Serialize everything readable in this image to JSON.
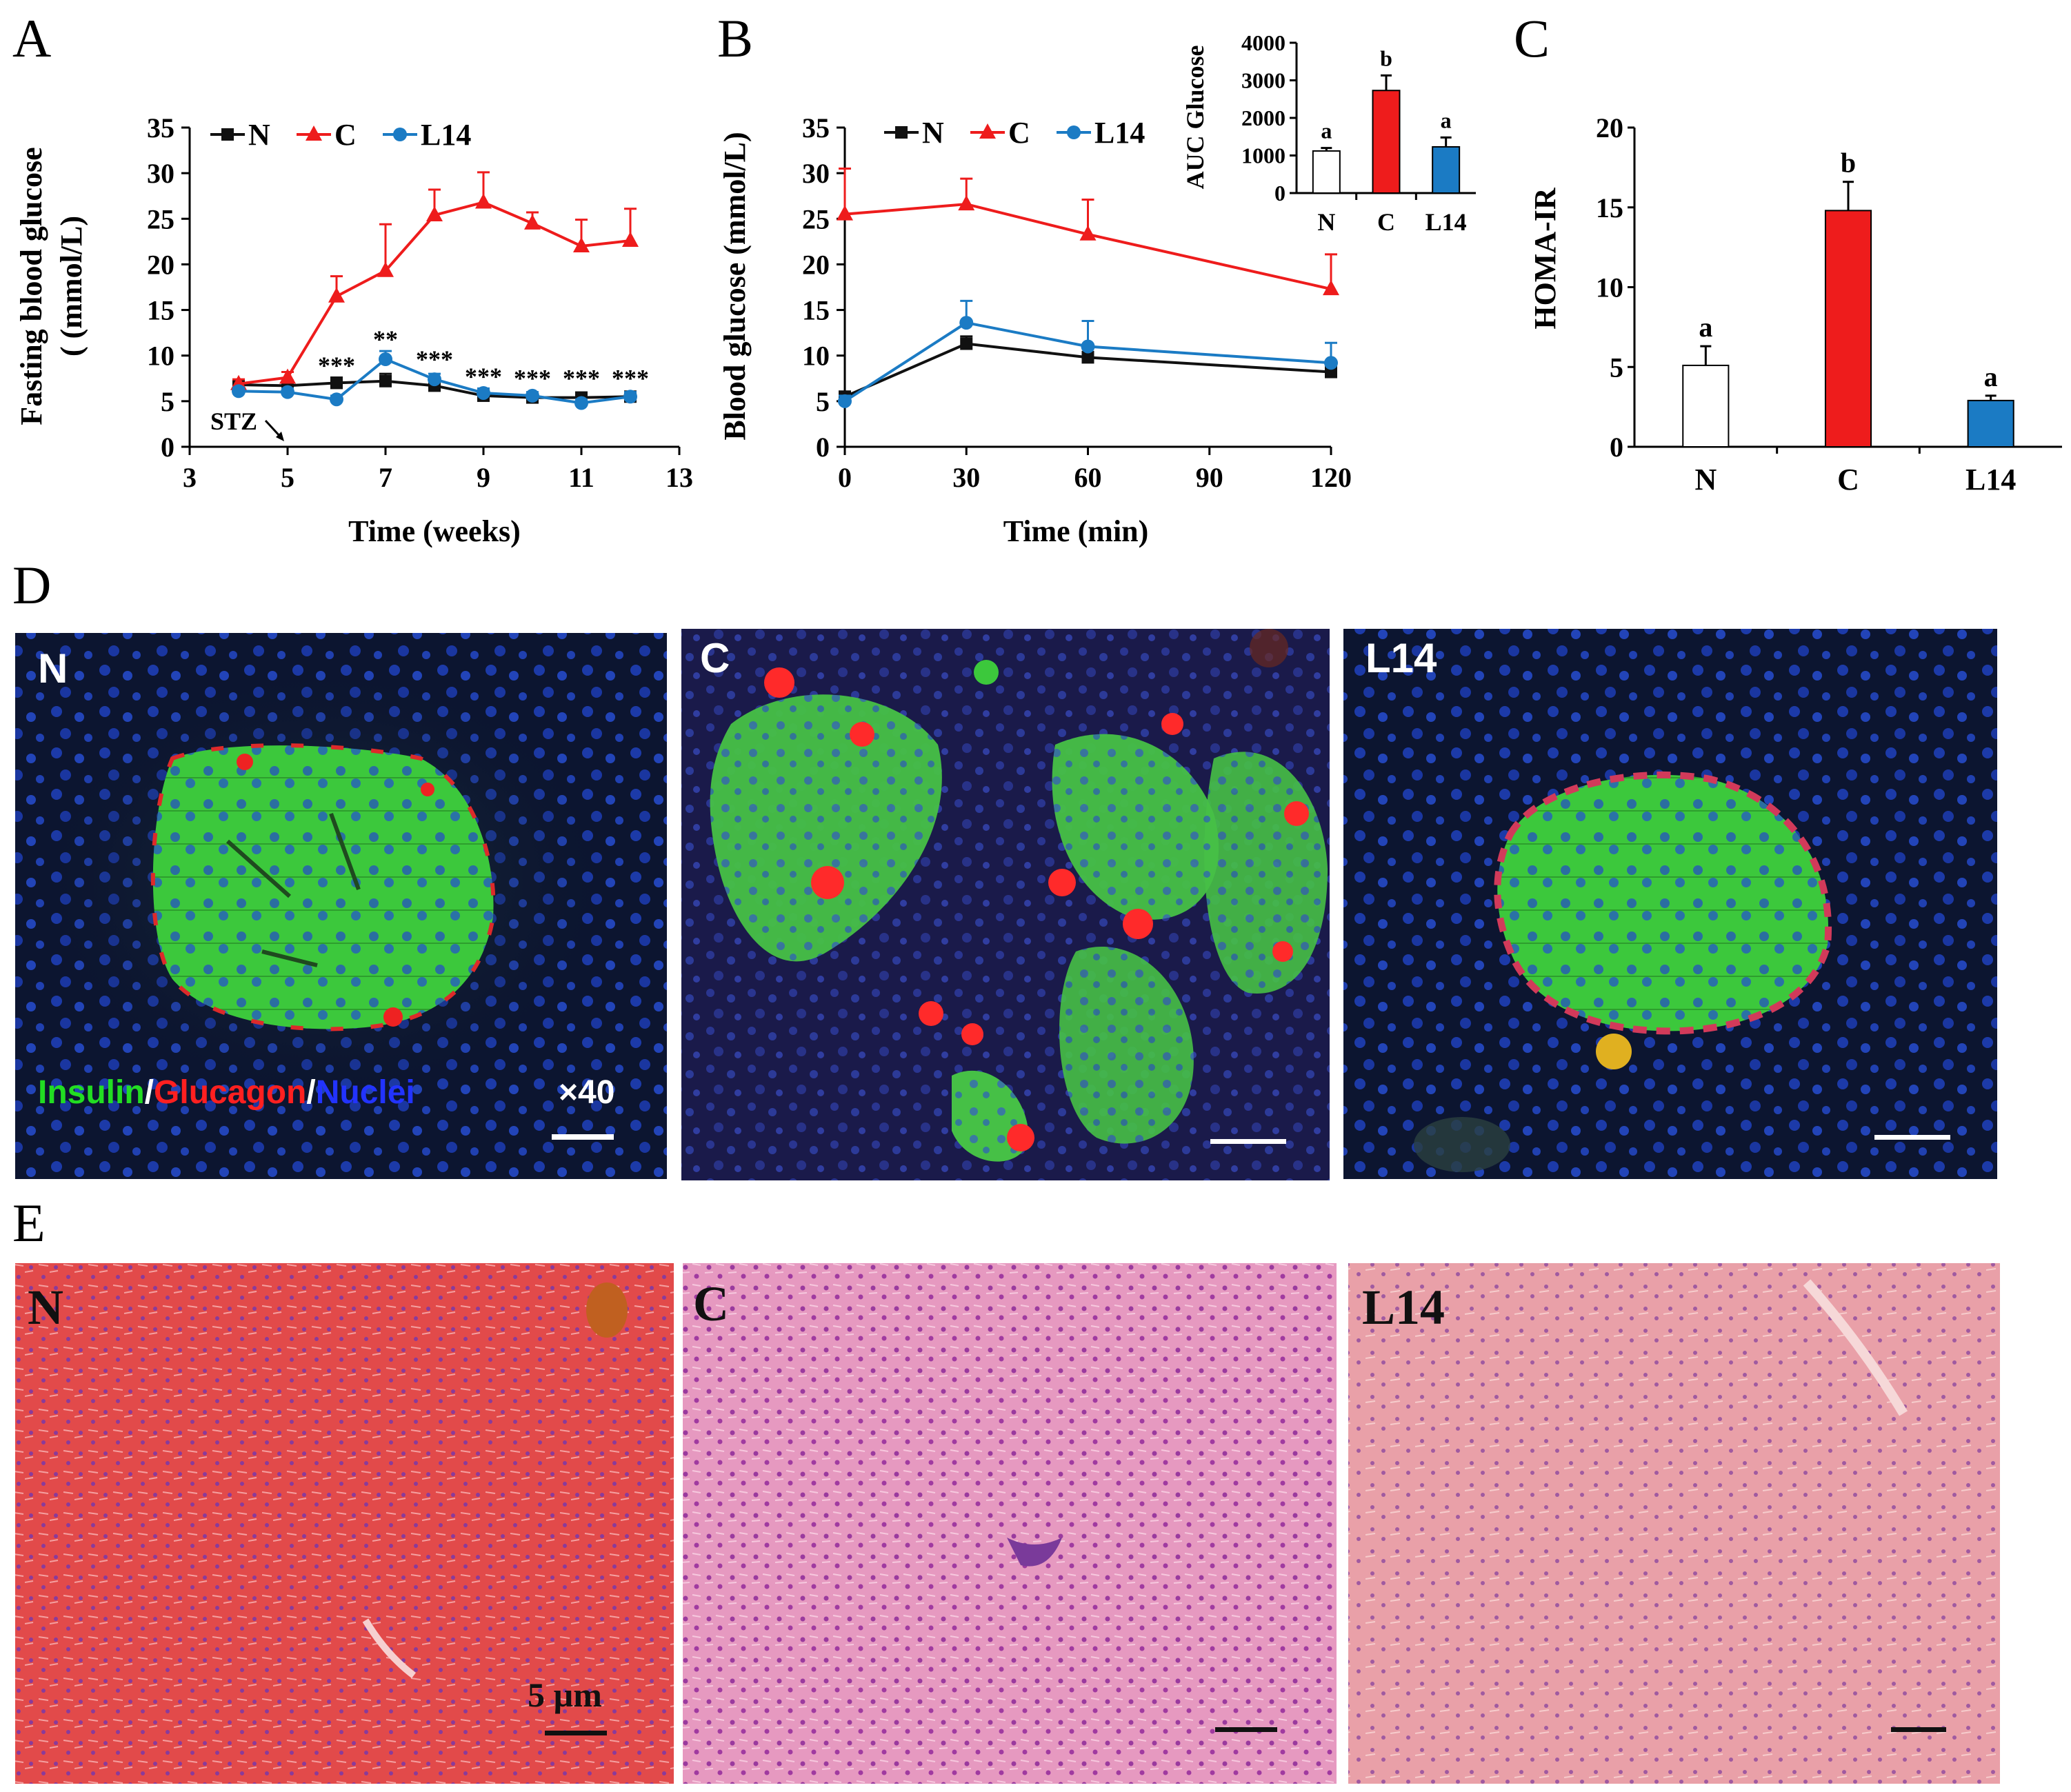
{
  "panel_labels": {
    "A": "A",
    "B": "B",
    "C": "C",
    "D": "D",
    "E": "E"
  },
  "colors": {
    "N": "#111111",
    "C": "#ee1c1c",
    "L14": "#1b7bc4"
  },
  "chart_data": [
    {
      "id": "A",
      "type": "line",
      "xlabel": "Time (weeks)",
      "ylabel": [
        "Fasting blood glucose",
        "( (mmol/L)"
      ],
      "xlim": [
        3,
        13
      ],
      "ylim": [
        0,
        35
      ],
      "xticks": [
        3,
        5,
        7,
        9,
        11,
        13
      ],
      "yticks": [
        0,
        5,
        10,
        15,
        20,
        25,
        30,
        35
      ],
      "legend": [
        "N",
        "C",
        "L14"
      ],
      "series": [
        {
          "name": "N",
          "marker": "square",
          "x": [
            4,
            5,
            6,
            7,
            8,
            9,
            10,
            11,
            12
          ],
          "y": [
            6.8,
            6.7,
            7.0,
            7.2,
            6.7,
            5.6,
            5.4,
            5.4,
            5.5
          ],
          "err": [
            0.4,
            0.4,
            0.6,
            0.8,
            0.5,
            0.4,
            0.4,
            0.5,
            0.4
          ]
        },
        {
          "name": "C",
          "marker": "triangle",
          "x": [
            4,
            5,
            6,
            7,
            8,
            9,
            10,
            11,
            12
          ],
          "y": [
            6.9,
            7.6,
            16.5,
            19.3,
            25.4,
            26.8,
            24.5,
            22.0,
            22.6
          ],
          "err": [
            0.5,
            0.6,
            2.2,
            5.1,
            2.8,
            3.3,
            1.2,
            2.9,
            3.5
          ]
        },
        {
          "name": "L14",
          "marker": "circle",
          "x": [
            4,
            5,
            6,
            7,
            8,
            9,
            10,
            11,
            12
          ],
          "y": [
            6.1,
            6.0,
            5.2,
            9.6,
            7.4,
            5.9,
            5.6,
            4.8,
            5.5
          ],
          "err": [
            0.4,
            0.4,
            0.4,
            0.9,
            0.6,
            0.5,
            0.4,
            0.4,
            0.5
          ]
        }
      ],
      "annotations": [
        {
          "text": "***",
          "x": 6,
          "y": 8.0
        },
        {
          "text": "**",
          "x": 7,
          "y": 10.9
        },
        {
          "text": "***",
          "x": 8,
          "y": 8.7
        },
        {
          "text": "***",
          "x": 9,
          "y": 6.8
        },
        {
          "text": "***",
          "x": 10,
          "y": 6.6
        },
        {
          "text": "***",
          "x": 11,
          "y": 6.6
        },
        {
          "text": "***",
          "x": 12,
          "y": 6.6
        }
      ],
      "arrow_label": "STZ"
    },
    {
      "id": "B",
      "type": "line",
      "xlabel": "Time (min)",
      "ylabel": "Blood glucose (mmol/L)",
      "xlim": [
        0,
        120
      ],
      "ylim": [
        0,
        35
      ],
      "xticks": [
        0,
        30,
        60,
        90,
        120
      ],
      "yticks": [
        0,
        5,
        10,
        15,
        20,
        25,
        30,
        35
      ],
      "legend": [
        "N",
        "C",
        "L14"
      ],
      "series": [
        {
          "name": "N",
          "marker": "square",
          "x": [
            0,
            30,
            60,
            120
          ],
          "y": [
            5.5,
            11.3,
            9.8,
            8.2
          ],
          "err": [
            0.4,
            0.8,
            0.6,
            0.5
          ]
        },
        {
          "name": "C",
          "marker": "triangle",
          "x": [
            0,
            30,
            60,
            120
          ],
          "y": [
            25.5,
            26.6,
            23.3,
            17.3
          ],
          "err": [
            5.0,
            2.8,
            3.8,
            3.8
          ]
        },
        {
          "name": "L14",
          "marker": "circle",
          "x": [
            0,
            30,
            60,
            120
          ],
          "y": [
            5.0,
            13.6,
            11.0,
            9.2
          ],
          "err": [
            0.6,
            2.4,
            2.8,
            2.2
          ]
        }
      ],
      "inset": {
        "type": "bar",
        "ylabel": "AUC Glucose",
        "ylim": [
          0,
          4000
        ],
        "yticks": [
          0,
          1000,
          2000,
          3000,
          4000
        ],
        "categories": [
          "N",
          "C",
          "L14"
        ],
        "values": [
          1120,
          2730,
          1230
        ],
        "err": [
          80,
          400,
          250
        ],
        "letters": [
          "a",
          "b",
          "a"
        ]
      }
    },
    {
      "id": "C",
      "type": "bar",
      "ylabel": "HOMA-IR",
      "ylim": [
        0,
        20
      ],
      "yticks": [
        0,
        5,
        10,
        15,
        20
      ],
      "categories": [
        "N",
        "C",
        "L14"
      ],
      "values": [
        5.1,
        14.8,
        2.9
      ],
      "err": [
        1.2,
        1.8,
        0.3
      ],
      "letters": [
        "a",
        "b",
        "a"
      ]
    }
  ],
  "panel_D": {
    "tags": [
      "N",
      "C",
      "L14"
    ],
    "stain_parts": [
      {
        "text": "Insulin",
        "color": "#22dd22"
      },
      {
        "text": "/",
        "color": "#ffffff"
      },
      {
        "text": "Glucagon",
        "color": "#ff2020"
      },
      {
        "text": "/",
        "color": "#ffffff"
      },
      {
        "text": "Nuclei",
        "color": "#2233ff"
      }
    ],
    "magnification": "×40"
  },
  "panel_E": {
    "tags": [
      "N",
      "C",
      "L14"
    ],
    "scale_label": "5 µm"
  }
}
